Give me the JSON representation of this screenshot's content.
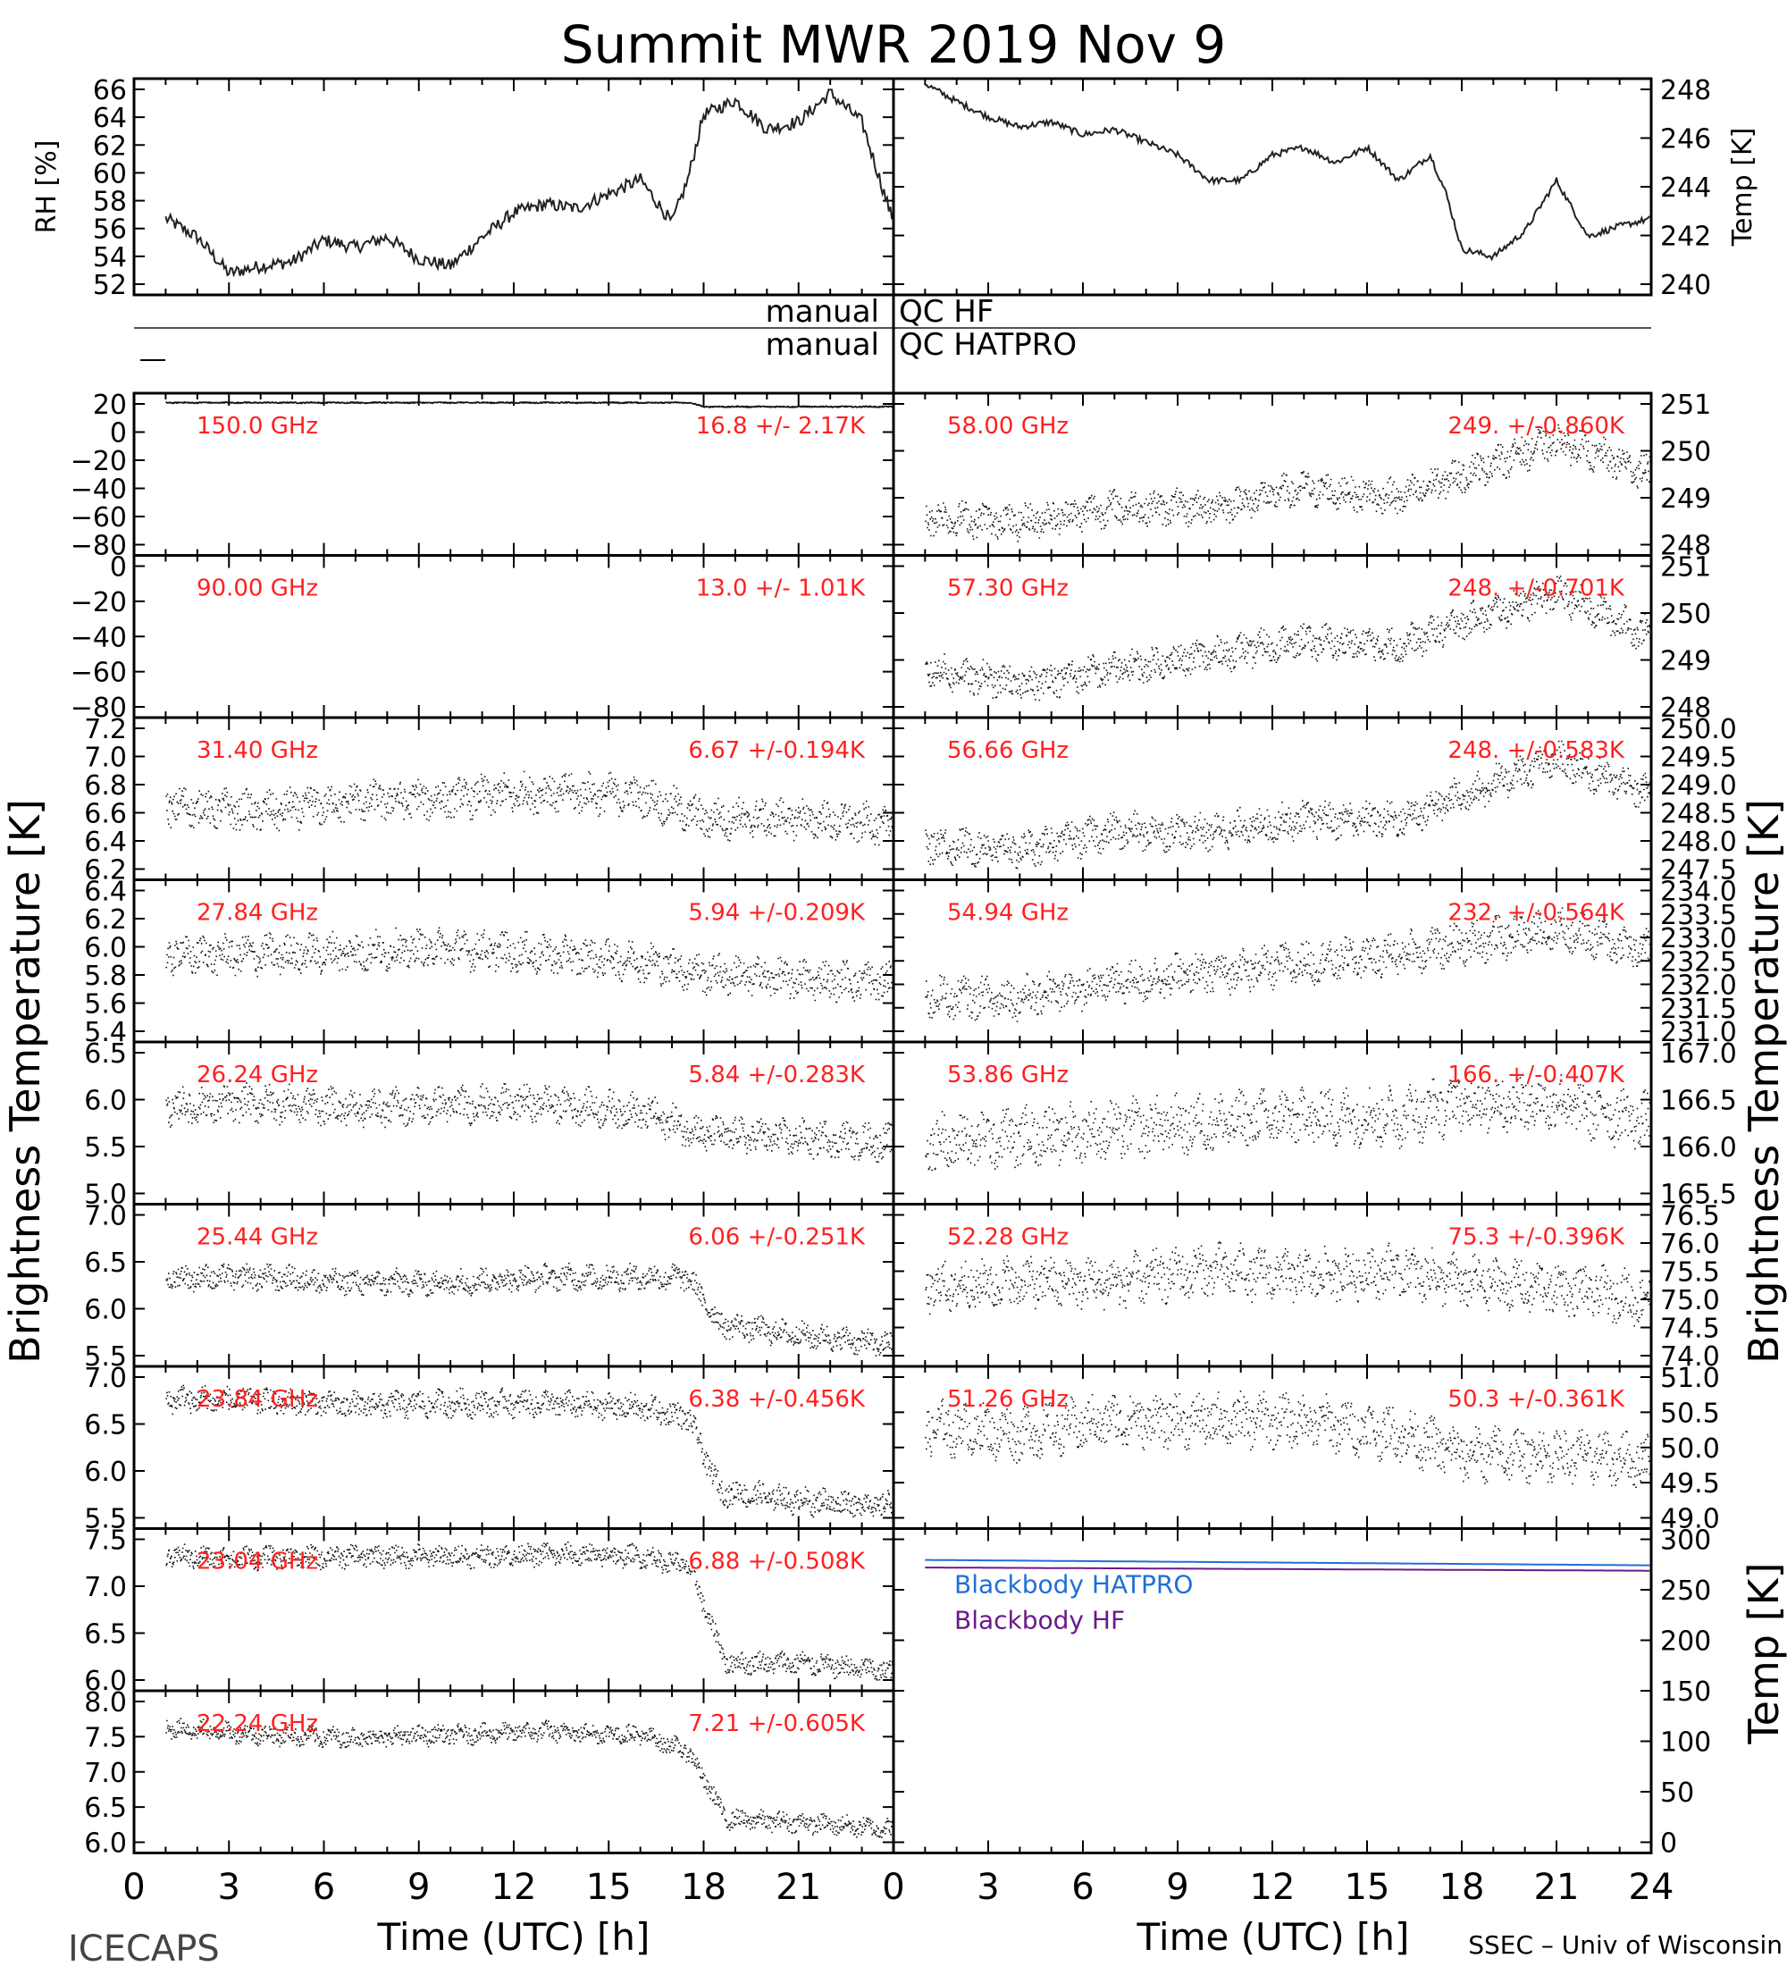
{
  "chart_data": {
    "type": "line",
    "title": "Summit MWR 2019 Nov  9",
    "footer_left": "ICECAPS",
    "footer_right": "SSEC – Univ of Wisconsin",
    "xlabel": "Time (UTC) [h]",
    "xlim": [
      0,
      24
    ],
    "xticks": [
      "0",
      "3",
      "6",
      "9",
      "12",
      "15",
      "18",
      "21",
      "0",
      "3",
      "6",
      "9",
      "12",
      "15",
      "18",
      "21",
      "24"
    ],
    "left_ylabel": "Brightness Temperature [K]",
    "right_ylabel": "Brightness Temperature [K]",
    "top_panels": {
      "rh": {
        "ylabel": "RH [%]",
        "ylim": [
          51.5,
          66.5
        ],
        "yticks": [
          "52",
          "54",
          "56",
          "58",
          "60",
          "62",
          "64",
          "66"
        ],
        "x": [
          1,
          2,
          3,
          4,
          5,
          6,
          7,
          8,
          9,
          10,
          11,
          12,
          13,
          14,
          15,
          16,
          17,
          17.5,
          18,
          19,
          20,
          21,
          22,
          23,
          24
        ],
        "values": [
          56.8,
          55.5,
          53.0,
          53.5,
          53.8,
          55.3,
          54.8,
          55.5,
          54.0,
          53.5,
          55.5,
          57.2,
          57.8,
          57.5,
          58.5,
          59.5,
          56.5,
          59.5,
          64.0,
          65.0,
          63.0,
          63.5,
          65.5,
          63.5,
          56.5
        ]
      },
      "temp": {
        "ylabel": "Temp [K]",
        "ylim": [
          240,
          248.5
        ],
        "yticks": [
          "240",
          "242",
          "244",
          "246",
          "248"
        ],
        "x": [
          1,
          2,
          3,
          4,
          5,
          6,
          7,
          8,
          9,
          10,
          11,
          12,
          13,
          14,
          15,
          16,
          17,
          17.5,
          18,
          19,
          20,
          21,
          22,
          23,
          24
        ],
        "values": [
          248.3,
          247.6,
          247.0,
          246.6,
          246.8,
          246.3,
          246.5,
          246.0,
          245.5,
          244.5,
          244.5,
          245.5,
          245.8,
          245.2,
          245.8,
          244.5,
          245.5,
          244.0,
          241.8,
          241.5,
          242.5,
          244.5,
          242.3,
          242.7,
          243.0
        ]
      }
    },
    "qc": {
      "hf_left": "manual",
      "hf_right": "QC  HF",
      "hatpro_left": "manual",
      "hatpro_right": "QC  HATPRO"
    },
    "left_channels": [
      {
        "label": "150.0 GHz",
        "stats": "16.8  +/-  2.17K",
        "ylim": [
          -95,
          25
        ],
        "yticks": [
          "20",
          "0",
          "−20",
          "−40",
          "−60",
          "−80"
        ],
        "trend": [
          [
            1,
            18
          ],
          [
            17.5,
            18
          ],
          [
            18,
            15
          ],
          [
            24,
            15
          ]
        ],
        "noise": 0.4
      },
      {
        "label": "90.00 GHz",
        "stats": "13.0  +/-  1.01K",
        "ylim": [
          -95,
          10
        ],
        "yticks": [
          "0",
          "−20",
          "−40",
          "−60",
          "−80"
        ],
        "trend": [],
        "noise": 0
      },
      {
        "label": "31.40 GHz",
        "stats": "6.67  +/-0.194K",
        "ylim": [
          6.1,
          7.3
        ],
        "yticks": [
          "7.2",
          "7.0",
          "6.8",
          "6.6",
          "6.4",
          "6.2"
        ],
        "trend": [
          [
            1,
            6.65
          ],
          [
            4,
            6.6
          ],
          [
            7,
            6.68
          ],
          [
            10,
            6.7
          ],
          [
            13,
            6.75
          ],
          [
            16,
            6.72
          ],
          [
            18,
            6.55
          ],
          [
            21,
            6.55
          ],
          [
            24,
            6.5
          ]
        ],
        "noise": 0.12
      },
      {
        "label": "27.84 GHz",
        "stats": "5.94  +/-0.209K",
        "ylim": [
          5.3,
          6.6
        ],
        "yticks": [
          "6.4",
          "6.2",
          "6.0",
          "5.8",
          "5.6",
          "5.4"
        ],
        "trend": [
          [
            1,
            6.0
          ],
          [
            4,
            6.0
          ],
          [
            7,
            6.02
          ],
          [
            10,
            6.05
          ],
          [
            13,
            6.0
          ],
          [
            16,
            5.95
          ],
          [
            18,
            5.85
          ],
          [
            21,
            5.8
          ],
          [
            24,
            5.78
          ]
        ],
        "noise": 0.13
      },
      {
        "label": "26.24 GHz",
        "stats": "5.84  +/-0.283K",
        "ylim": [
          4.85,
          6.7
        ],
        "yticks": [
          "6.5",
          "6.0",
          "5.5",
          "5.0"
        ],
        "trend": [
          [
            1,
            5.95
          ],
          [
            4,
            6.0
          ],
          [
            7,
            5.95
          ],
          [
            10,
            5.98
          ],
          [
            13,
            6.0
          ],
          [
            16,
            5.9
          ],
          [
            18,
            5.65
          ],
          [
            21,
            5.6
          ],
          [
            24,
            5.55
          ]
        ],
        "noise": 0.17
      },
      {
        "label": "25.44 GHz",
        "stats": "6.06  +/-0.251K",
        "ylim": [
          5.45,
          7.0
        ],
        "yticks": [
          "7.0",
          "6.5",
          "6.0",
          "5.5"
        ],
        "trend": [
          [
            1,
            6.3
          ],
          [
            4,
            6.3
          ],
          [
            7,
            6.25
          ],
          [
            10,
            6.25
          ],
          [
            13,
            6.3
          ],
          [
            16,
            6.3
          ],
          [
            17.5,
            6.3
          ],
          [
            18.5,
            5.85
          ],
          [
            21,
            5.75
          ],
          [
            24,
            5.65
          ]
        ],
        "noise": 0.1
      },
      {
        "label": "23.84 GHz",
        "stats": "6.38  +/-0.456K",
        "ylim": [
          5.35,
          7.1
        ],
        "yticks": [
          "7.0",
          "6.5",
          "6.0",
          "5.5"
        ],
        "trend": [
          [
            1,
            6.75
          ],
          [
            4,
            6.72
          ],
          [
            7,
            6.68
          ],
          [
            10,
            6.7
          ],
          [
            13,
            6.7
          ],
          [
            16,
            6.65
          ],
          [
            17.5,
            6.55
          ],
          [
            18.5,
            5.75
          ],
          [
            21,
            5.65
          ],
          [
            24,
            5.6
          ]
        ],
        "noise": 0.12
      },
      {
        "label": "23.04 GHz",
        "stats": "6.88  +/-0.508K",
        "ylim": [
          5.75,
          7.5
        ],
        "yticks": [
          "7.5",
          "7.0",
          "6.5",
          "6.0"
        ],
        "trend": [
          [
            1,
            7.2
          ],
          [
            4,
            7.18
          ],
          [
            7,
            7.2
          ],
          [
            10,
            7.2
          ],
          [
            13,
            7.22
          ],
          [
            16,
            7.2
          ],
          [
            17.5,
            7.1
          ],
          [
            18.7,
            6.05
          ],
          [
            21,
            6.05
          ],
          [
            24,
            5.95
          ]
        ],
        "noise": 0.1
      },
      {
        "label": "22.24 GHz",
        "stats": "7.21  +/-0.605K",
        "ylim": [
          5.8,
          8.2
        ],
        "yticks": [
          "8.0",
          "7.5",
          "7.0",
          "6.5",
          "6.0"
        ],
        "trend": [
          [
            1,
            7.65
          ],
          [
            4,
            7.55
          ],
          [
            7,
            7.5
          ],
          [
            10,
            7.55
          ],
          [
            13,
            7.6
          ],
          [
            16,
            7.55
          ],
          [
            17.5,
            7.3
          ],
          [
            18.7,
            6.3
          ],
          [
            21,
            6.25
          ],
          [
            24,
            6.15
          ]
        ],
        "noise": 0.12
      }
    ],
    "right_channels": [
      {
        "label": "58.00 GHz",
        "stats": "249.  +/-0.860K",
        "ylim": [
          247.8,
          251.2
        ],
        "yticks": [
          "251",
          "250",
          "249",
          "248"
        ],
        "trend": [
          [
            1,
            248.6
          ],
          [
            4,
            248.5
          ],
          [
            7,
            248.8
          ],
          [
            10,
            248.8
          ],
          [
            13,
            249.2
          ],
          [
            16,
            249.0
          ],
          [
            18,
            249.5
          ],
          [
            21,
            250.2
          ],
          [
            24,
            249.5
          ]
        ],
        "noise": 0.3
      },
      {
        "label": "57.30 GHz",
        "stats": "248.  +/-0.701K",
        "ylim": [
          247.6,
          251.0
        ],
        "yticks": [
          "251",
          "250",
          "249",
          "248"
        ],
        "trend": [
          [
            1,
            248.6
          ],
          [
            4,
            248.3
          ],
          [
            7,
            248.6
          ],
          [
            10,
            248.9
          ],
          [
            13,
            249.2
          ],
          [
            16,
            249.1
          ],
          [
            18,
            249.6
          ],
          [
            21,
            250.2
          ],
          [
            24,
            249.3
          ]
        ],
        "noise": 0.3
      },
      {
        "label": "56.66 GHz",
        "stats": "248.  +/-0.583K",
        "ylim": [
          247.3,
          250.0
        ],
        "yticks": [
          "250.0",
          "249.5",
          "249.0",
          "248.5",
          "248.0",
          "247.5"
        ],
        "trend": [
          [
            1,
            247.9
          ],
          [
            4,
            247.8
          ],
          [
            7,
            248.1
          ],
          [
            10,
            248.1
          ],
          [
            13,
            248.3
          ],
          [
            16,
            248.3
          ],
          [
            18,
            248.7
          ],
          [
            21,
            249.3
          ],
          [
            24,
            248.7
          ]
        ],
        "noise": 0.25
      },
      {
        "label": "54.94 GHz",
        "stats": "232.  +/-0.564K",
        "ylim": [
          231.0,
          234.3
        ],
        "yticks": [
          "234.0",
          "233.5",
          "233.0",
          "232.5",
          "232.0",
          "231.5",
          "231.0"
        ],
        "trend": [
          [
            1,
            231.9
          ],
          [
            4,
            231.9
          ],
          [
            7,
            232.2
          ],
          [
            10,
            232.4
          ],
          [
            13,
            232.6
          ],
          [
            16,
            232.8
          ],
          [
            18,
            233.0
          ],
          [
            21,
            233.3
          ],
          [
            24,
            232.8
          ]
        ],
        "noise": 0.35
      },
      {
        "label": "53.86 GHz",
        "stats": "166.  +/-0.407K",
        "ylim": [
          165.0,
          167.4
        ],
        "yticks": [
          "167.0",
          "166.5",
          "166.0",
          "165.5"
        ],
        "trend": [
          [
            1,
            165.9
          ],
          [
            4,
            166.0
          ],
          [
            7,
            166.1
          ],
          [
            10,
            166.2
          ],
          [
            13,
            166.3
          ],
          [
            16,
            166.3
          ],
          [
            18,
            166.5
          ],
          [
            21,
            166.5
          ],
          [
            24,
            166.2
          ]
        ],
        "noise": 0.35
      },
      {
        "label": "52.28 GHz",
        "stats": "75.3  +/-0.396K",
        "ylim": [
          73.9,
          76.6
        ],
        "yticks": [
          "76.5",
          "76.0",
          "75.5",
          "75.0",
          "74.5",
          "74.0"
        ],
        "trend": [
          [
            1,
            75.2
          ],
          [
            4,
            75.3
          ],
          [
            7,
            75.3
          ],
          [
            10,
            75.5
          ],
          [
            13,
            75.4
          ],
          [
            16,
            75.5
          ],
          [
            18,
            75.3
          ],
          [
            21,
            75.2
          ],
          [
            24,
            75.0
          ]
        ],
        "noise": 0.35
      },
      {
        "label": "51.26 GHz",
        "stats": "50.3  +/-0.361K",
        "ylim": [
          48.9,
          51.3
        ],
        "yticks": [
          "51.0",
          "50.5",
          "50.0",
          "49.5",
          "49.0"
        ],
        "trend": [
          [
            1,
            50.4
          ],
          [
            4,
            50.3
          ],
          [
            7,
            50.5
          ],
          [
            10,
            50.5
          ],
          [
            13,
            50.5
          ],
          [
            16,
            50.3
          ],
          [
            18,
            50.0
          ],
          [
            21,
            50.0
          ],
          [
            24,
            49.9
          ]
        ],
        "noise": 0.32
      }
    ],
    "blackbody": {
      "ylabel": "Temp [K]",
      "ylim": [
        0,
        300
      ],
      "yticks": [
        "300",
        "250",
        "200",
        "150",
        "100",
        "50",
        "0"
      ],
      "series": [
        {
          "name": "Blackbody  HATPRO",
          "color": "#1f6fd6",
          "x": [
            1,
            24
          ],
          "values": [
            271,
            266
          ]
        },
        {
          "name": "Blackbody  HF",
          "color": "#6a1a8a",
          "x": [
            1,
            24
          ],
          "values": [
            264,
            261
          ]
        }
      ]
    }
  },
  "colors": {
    "label_red": "#ff2020",
    "ink": "#000000"
  }
}
